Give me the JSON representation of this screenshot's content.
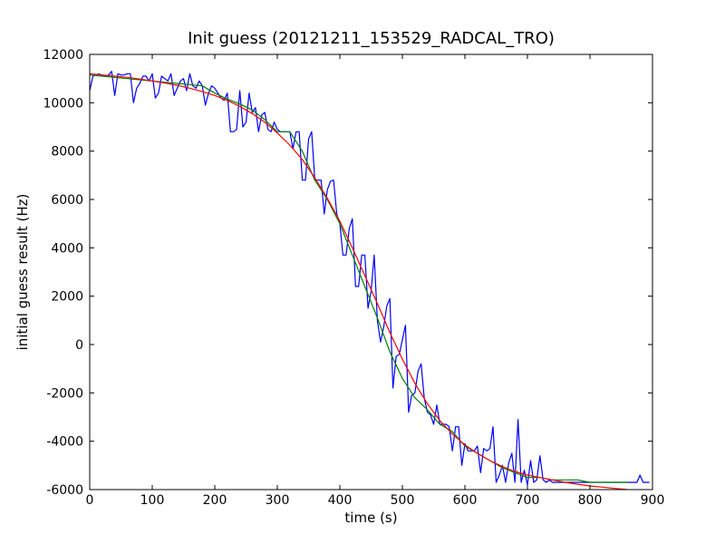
{
  "chart_data": {
    "type": "line",
    "title": "Init guess (20121211_153529_RADCAL_TRO)",
    "xlabel": "time (s)",
    "ylabel": "initial guess result (Hz)",
    "xlim": [
      0,
      900
    ],
    "ylim": [
      -6000,
      12000
    ],
    "xticks": [
      0,
      100,
      200,
      300,
      400,
      500,
      600,
      700,
      800,
      900
    ],
    "yticks": [
      -6000,
      -4000,
      -2000,
      0,
      2000,
      4000,
      6000,
      8000,
      10000,
      12000
    ],
    "grid": false,
    "legend": "none",
    "series": [
      {
        "color": "#0000ff",
        "x": [
          0,
          5,
          10,
          15,
          20,
          25,
          30,
          35,
          40,
          45,
          50,
          55,
          60,
          65,
          70,
          75,
          80,
          85,
          90,
          95,
          100,
          105,
          110,
          115,
          120,
          125,
          130,
          135,
          140,
          145,
          150,
          155,
          160,
          165,
          170,
          175,
          180,
          185,
          190,
          195,
          200,
          205,
          210,
          215,
          220,
          225,
          230,
          235,
          240,
          245,
          250,
          255,
          260,
          265,
          270,
          275,
          280,
          285,
          290,
          295,
          300,
          305,
          310,
          315,
          320,
          325,
          330,
          335,
          340,
          345,
          350,
          355,
          360,
          365,
          370,
          375,
          380,
          385,
          390,
          395,
          400,
          405,
          410,
          415,
          420,
          425,
          430,
          435,
          440,
          445,
          450,
          455,
          460,
          465,
          470,
          475,
          480,
          485,
          490,
          495,
          500,
          505,
          510,
          515,
          520,
          525,
          530,
          535,
          540,
          545,
          550,
          555,
          560,
          565,
          570,
          575,
          580,
          585,
          590,
          595,
          600,
          605,
          610,
          615,
          620,
          625,
          630,
          635,
          640,
          645,
          650,
          655,
          660,
          665,
          670,
          675,
          680,
          685,
          690,
          695,
          700,
          705,
          710,
          715,
          720,
          725,
          730,
          735,
          740,
          745,
          750,
          755,
          760,
          765,
          770,
          775,
          780,
          785,
          790,
          795,
          800,
          805,
          810,
          815,
          820,
          825,
          830,
          835,
          840,
          845,
          850,
          855,
          860,
          865,
          870,
          875,
          880,
          885,
          890,
          895
        ],
        "y": [
          10500,
          11100,
          11150,
          11200,
          11100,
          11100,
          11150,
          11300,
          10300,
          11200,
          11150,
          11150,
          11200,
          11200,
          10000,
          10600,
          10800,
          11100,
          11100,
          10900,
          11200,
          10200,
          10400,
          11100,
          11000,
          10900,
          11200,
          10300,
          10600,
          10900,
          11000,
          10500,
          11200,
          10700,
          10600,
          10900,
          10700,
          9900,
          10400,
          10700,
          10600,
          10400,
          10200,
          10100,
          10400,
          8800,
          8800,
          8900,
          10500,
          9000,
          9200,
          10400,
          9600,
          9800,
          8800,
          9500,
          9600,
          8900,
          8800,
          9200,
          8900,
          8800,
          8800,
          8800,
          8800,
          8100,
          8800,
          8800,
          6800,
          6800,
          8500,
          8800,
          6800,
          6800,
          6800,
          5400,
          6400,
          6750,
          6800,
          5400,
          5000,
          3700,
          3700,
          4800,
          5200,
          2400,
          2400,
          3700,
          3700,
          1500,
          2200,
          3700,
          1000,
          100,
          700,
          1600,
          1900,
          -1800,
          -500,
          -400,
          200,
          800,
          -2800,
          -2100,
          -2000,
          -1100,
          -800,
          -2200,
          -2800,
          -2900,
          -3300,
          -2500,
          -3300,
          -3300,
          -3300,
          -3400,
          -4400,
          -3400,
          -3400,
          -5000,
          -4100,
          -4400,
          -4400,
          -4400,
          -4200,
          -5300,
          -4300,
          -4400,
          -4300,
          -3400,
          -5700,
          -5400,
          -5000,
          -5700,
          -4900,
          -4500,
          -5700,
          -3100,
          -5700,
          -5200,
          -5800,
          -4800,
          -5700,
          -5600,
          -4600,
          -5600,
          -5700,
          -5600,
          -5700,
          -5700,
          -5700,
          -5700,
          -5700,
          -5700,
          -5700,
          -5700,
          -5700,
          -5700,
          -5700,
          -5700,
          -5700,
          -5700,
          -5700,
          -5700,
          -5700,
          -5700,
          -5700,
          -5700,
          -5700,
          -5700,
          -5700,
          -5700,
          -5700,
          -5700,
          -5700,
          -5700,
          -5400,
          -5700,
          -5700,
          -5700
        ]
      },
      {
        "color": "#008000",
        "x": [
          0,
          20,
          40,
          60,
          80,
          100,
          120,
          140,
          160,
          180,
          200,
          220,
          240,
          260,
          280,
          300,
          320,
          340,
          360,
          380,
          400,
          420,
          440,
          460,
          480,
          500,
          520,
          540,
          560,
          580,
          600,
          620,
          640,
          660,
          680,
          700,
          720,
          740,
          760,
          780,
          800,
          820,
          840,
          860
        ],
        "y": [
          11150,
          11100,
          11050,
          11000,
          10950,
          10900,
          10850,
          10800,
          10750,
          10700,
          10400,
          10150,
          9950,
          9700,
          9300,
          8800,
          8800,
          8000,
          6800,
          6000,
          5000,
          3700,
          2400,
          1100,
          -300,
          -1400,
          -2200,
          -2700,
          -3300,
          -3600,
          -4200,
          -4500,
          -4800,
          -5100,
          -5300,
          -5500,
          -5500,
          -5600,
          -5600,
          -5600,
          -5700,
          -5700,
          -5700,
          -5700
        ]
      },
      {
        "color": "#ff0000",
        "x": [
          0,
          20,
          40,
          60,
          80,
          100,
          120,
          140,
          160,
          180,
          200,
          220,
          240,
          260,
          280,
          300,
          320,
          340,
          360,
          380,
          400,
          420,
          440,
          460,
          480,
          500,
          520,
          540,
          560,
          580,
          600,
          620,
          640,
          660,
          680,
          700,
          720,
          740,
          760,
          780,
          800,
          820,
          840,
          860
        ],
        "y": [
          11200,
          11150,
          11100,
          11050,
          10980,
          10900,
          10820,
          10720,
          10600,
          10460,
          10300,
          10100,
          9850,
          9550,
          9200,
          8750,
          8250,
          7650,
          6900,
          6050,
          5100,
          4000,
          2850,
          1700,
          500,
          -600,
          -1600,
          -2450,
          -3150,
          -3700,
          -4150,
          -4500,
          -4800,
          -5050,
          -5250,
          -5400,
          -5500,
          -5600,
          -5700,
          -5780,
          -5850,
          -5900,
          -5950,
          -6000
        ]
      }
    ]
  }
}
